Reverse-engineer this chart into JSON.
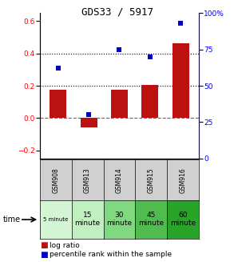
{
  "title": "GDS33 / 5917",
  "samples": [
    "GSM908",
    "GSM913",
    "GSM914",
    "GSM915",
    "GSM916"
  ],
  "time_labels_top": [
    "5 minute",
    "15",
    "30",
    "45",
    "60"
  ],
  "time_labels_bot": [
    "",
    "minute",
    "minute",
    "minute",
    "minute"
  ],
  "time_colors": [
    "#d4f5d4",
    "#c0f0c0",
    "#80d880",
    "#50bc50",
    "#28a428"
  ],
  "log_ratio": [
    0.175,
    -0.055,
    0.175,
    0.205,
    0.465
  ],
  "percentile": [
    62,
    30,
    75,
    70,
    93
  ],
  "bar_color": "#bb1111",
  "dot_color": "#0000cc",
  "ylim_left": [
    -0.25,
    0.65
  ],
  "ylim_right": [
    0,
    100
  ],
  "plot_bg": "#ffffff",
  "gray_bg": "#d0d0d0"
}
